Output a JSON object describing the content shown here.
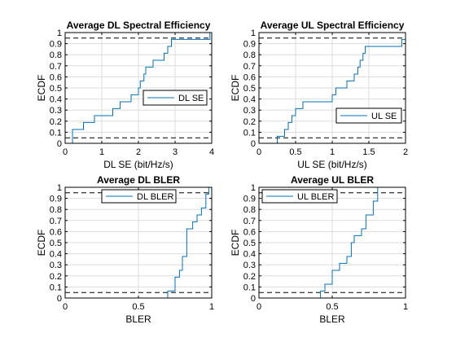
{
  "chart_data": [
    {
      "type": "line",
      "title": "Average DL Spectral Efficiency",
      "xlabel": "DL SE (bit/Hz/s)",
      "ylabel": "ECDF",
      "xlim": [
        0,
        4
      ],
      "ylim": [
        0,
        1
      ],
      "xticks": [
        "0",
        "1",
        "2",
        "3",
        "4"
      ],
      "yticks": [
        "0",
        "0.1",
        "0.2",
        "0.3",
        "0.4",
        "0.5",
        "0.6",
        "0.7",
        "0.8",
        "0.9",
        "1"
      ],
      "grid": true,
      "legend_position": "center-right",
      "ref_lines": [
        0.05,
        0.95
      ],
      "series": [
        {
          "name": "DL SE",
          "color": "#0072BD",
          "x": [
            0.2,
            0.5,
            0.8,
            1.0,
            1.3,
            1.5,
            1.8,
            2.0,
            2.05,
            2.15,
            2.2,
            2.4,
            2.7,
            2.8,
            2.9,
            3.95,
            4.0
          ],
          "y": [
            0.125,
            0.188,
            0.25,
            0.25,
            0.313,
            0.375,
            0.438,
            0.5,
            0.563,
            0.625,
            0.688,
            0.75,
            0.813,
            0.875,
            0.938,
            1.0,
            1.0
          ]
        }
      ]
    },
    {
      "type": "line",
      "title": "Average UL Spectral Efficiency",
      "xlabel": "UL SE (bit/Hz/s)",
      "ylabel": "ECDF",
      "xlim": [
        0,
        2
      ],
      "ylim": [
        0,
        1
      ],
      "xticks": [
        "0",
        "0.5",
        "1",
        "1.5",
        "2"
      ],
      "yticks": [
        "0",
        "0.1",
        "0.2",
        "0.3",
        "0.4",
        "0.5",
        "0.6",
        "0.7",
        "0.8",
        "0.9",
        "1"
      ],
      "grid": true,
      "legend_position": "bottom-right",
      "ref_lines": [
        0.05,
        0.95
      ],
      "series": [
        {
          "name": "UL SE",
          "color": "#0072BD",
          "x": [
            0.25,
            0.35,
            0.4,
            0.45,
            0.5,
            0.6,
            0.8,
            1.0,
            1.05,
            1.2,
            1.3,
            1.35,
            1.38,
            1.42,
            1.45,
            1.95,
            2.0
          ],
          "y": [
            0.063,
            0.125,
            0.188,
            0.25,
            0.313,
            0.375,
            0.375,
            0.438,
            0.5,
            0.563,
            0.625,
            0.688,
            0.75,
            0.813,
            0.875,
            0.938,
            1.0
          ]
        }
      ]
    },
    {
      "type": "line",
      "title": "Average DL BLER",
      "xlabel": "BLER",
      "ylabel": "ECDF",
      "xlim": [
        0,
        1
      ],
      "ylim": [
        0,
        1
      ],
      "xticks": [
        "0",
        "0.5",
        "1"
      ],
      "yticks": [
        "0",
        "0.1",
        "0.2",
        "0.3",
        "0.4",
        "0.5",
        "0.6",
        "0.7",
        "0.8",
        "0.9",
        "1"
      ],
      "grid": true,
      "legend_position": "top",
      "ref_lines": [
        0.05,
        0.95
      ],
      "series": [
        {
          "name": "DL BLER",
          "color": "#0072BD",
          "x": [
            0.7,
            0.75,
            0.78,
            0.8,
            0.83,
            0.87,
            0.9,
            0.93,
            0.96,
            0.98
          ],
          "y": [
            0.063,
            0.188,
            0.25,
            0.375,
            0.625,
            0.688,
            0.75,
            0.813,
            0.938,
            1.0
          ]
        }
      ]
    },
    {
      "type": "line",
      "title": "Average UL BLER",
      "xlabel": "BLER",
      "ylabel": "ECDF",
      "xlim": [
        0,
        1
      ],
      "ylim": [
        0,
        1
      ],
      "xticks": [
        "0",
        "0.5",
        "1"
      ],
      "yticks": [
        "0",
        "0.1",
        "0.2",
        "0.3",
        "0.4",
        "0.5",
        "0.6",
        "0.7",
        "0.8",
        "0.9",
        "1"
      ],
      "grid": true,
      "legend_position": "top-left",
      "ref_lines": [
        0.05,
        0.95
      ],
      "series": [
        {
          "name": "UL BLER",
          "color": "#0072BD",
          "x": [
            0.42,
            0.45,
            0.5,
            0.55,
            0.6,
            0.63,
            0.65,
            0.7,
            0.73,
            0.78,
            0.81
          ],
          "y": [
            0.063,
            0.125,
            0.25,
            0.313,
            0.375,
            0.5,
            0.563,
            0.625,
            0.75,
            0.875,
            1.0
          ]
        }
      ]
    }
  ]
}
